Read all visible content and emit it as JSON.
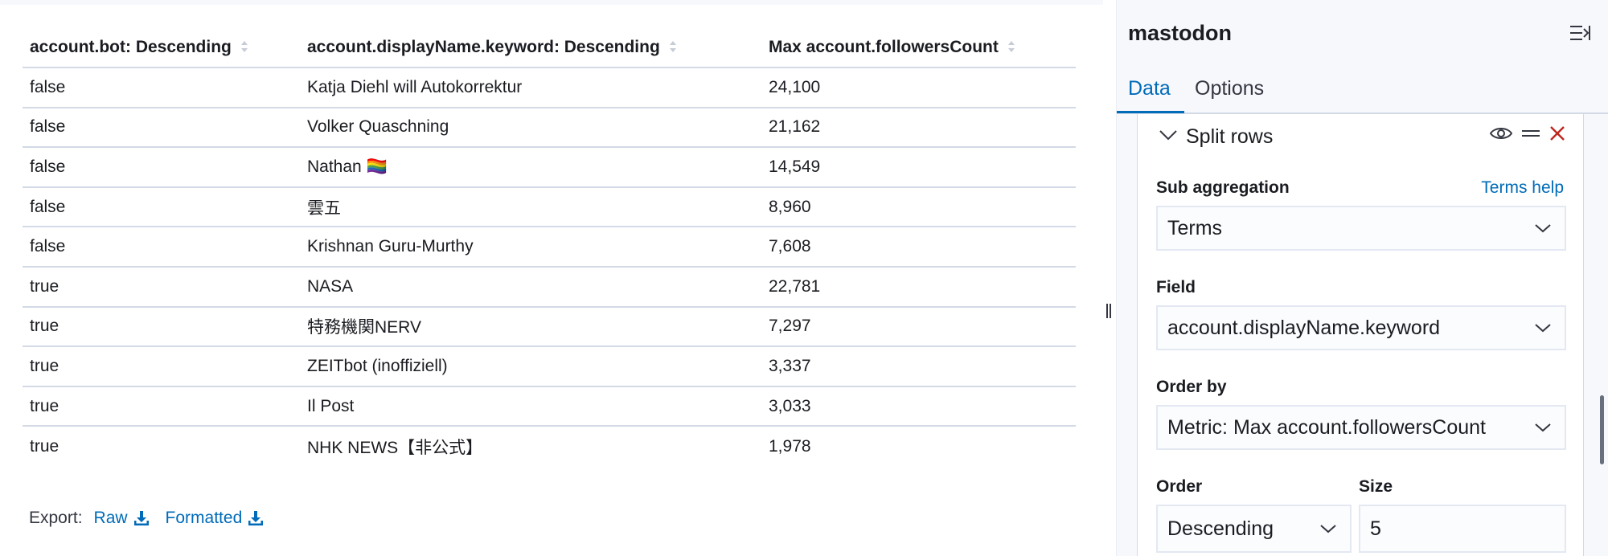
{
  "table": {
    "columns": [
      "account.bot: Descending",
      "account.displayName.keyword: Descending",
      "Max account.followersCount"
    ],
    "rows": [
      [
        "false",
        "Katja Diehl will Autokorrektur",
        "24,100"
      ],
      [
        "false",
        "Volker Quaschning",
        "21,162"
      ],
      [
        "false",
        "Nathan 🏳️‍🌈",
        "14,549"
      ],
      [
        "false",
        "雲五",
        "8,960"
      ],
      [
        "false",
        "Krishnan Guru-Murthy",
        "7,608"
      ],
      [
        "true",
        "NASA",
        "22,781"
      ],
      [
        "true",
        "特務機関NERV",
        "7,297"
      ],
      [
        "true",
        "ZEITbot (inoffiziell)",
        "3,337"
      ],
      [
        "true",
        "Il Post",
        "3,033"
      ],
      [
        "true",
        "NHK NEWS【非公式】",
        "1,978"
      ]
    ]
  },
  "export": {
    "label": "Export:",
    "raw": "Raw",
    "formatted": "Formatted"
  },
  "sidebar": {
    "title": "mastodon",
    "tabs": [
      "Data",
      "Options"
    ],
    "active_tab": "Data",
    "split": {
      "title": "Split rows",
      "sub_aggregation_label": "Sub aggregation",
      "help_link": "Terms help",
      "sub_aggregation_value": "Terms",
      "field_label": "Field",
      "field_value": "account.displayName.keyword",
      "order_by_label": "Order by",
      "order_by_value": "Metric: Max account.followersCount",
      "order_label": "Order",
      "order_value": "Descending",
      "size_label": "Size",
      "size_value": "5"
    }
  },
  "colors": {
    "accent": "#006bb8",
    "danger": "#bd271e",
    "border": "#d3dae6"
  }
}
